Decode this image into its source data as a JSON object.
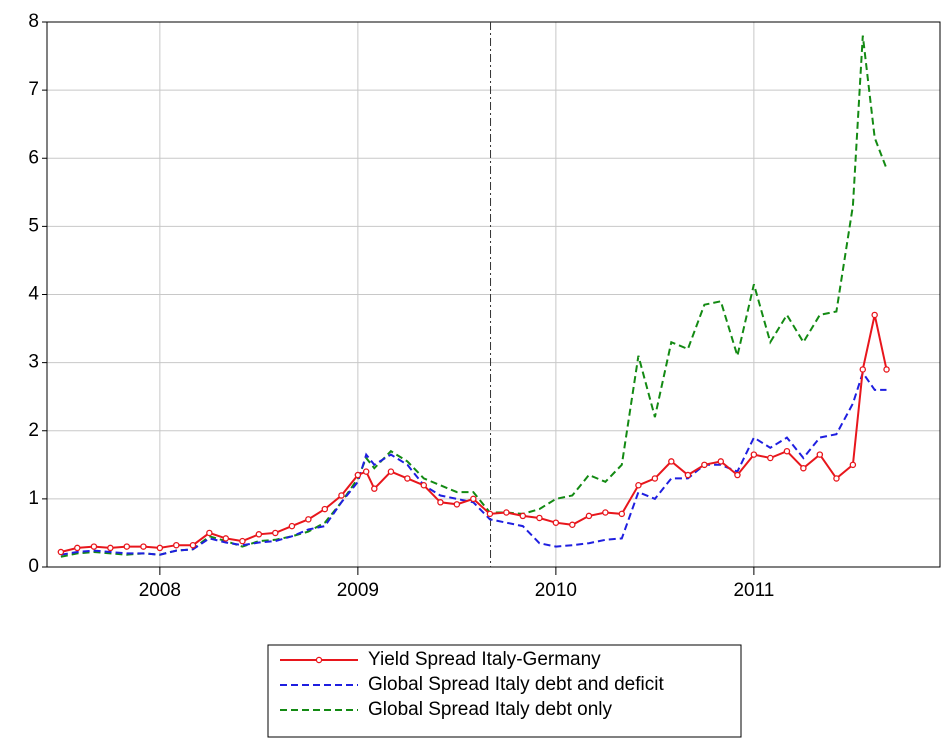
{
  "chart_data": {
    "type": "line",
    "x": [
      2007.5,
      2007.583,
      2007.667,
      2007.75,
      2007.833,
      2007.917,
      2008.0,
      2008.083,
      2008.167,
      2008.25,
      2008.333,
      2008.417,
      2008.5,
      2008.583,
      2008.667,
      2008.75,
      2008.833,
      2008.917,
      2009.0,
      2009.042,
      2009.083,
      2009.167,
      2009.25,
      2009.333,
      2009.417,
      2009.5,
      2009.583,
      2009.667,
      2009.75,
      2009.833,
      2009.917,
      2010.0,
      2010.083,
      2010.167,
      2010.25,
      2010.333,
      2010.417,
      2010.5,
      2010.583,
      2010.667,
      2010.75,
      2010.833,
      2010.917,
      2011.0,
      2011.083,
      2011.167,
      2011.25,
      2011.333,
      2011.417,
      2011.5,
      2011.55,
      2011.61,
      2011.67
    ],
    "series": [
      {
        "name": "Yield Spread Italy-Germany",
        "color": "#e8161c",
        "markers": true,
        "values": [
          0.22,
          0.28,
          0.3,
          0.28,
          0.3,
          0.3,
          0.28,
          0.32,
          0.32,
          0.5,
          0.42,
          0.38,
          0.48,
          0.5,
          0.6,
          0.7,
          0.85,
          1.05,
          1.35,
          1.4,
          1.15,
          1.4,
          1.3,
          1.2,
          0.95,
          0.92,
          1.0,
          0.78,
          0.8,
          0.75,
          0.72,
          0.65,
          0.62,
          0.75,
          0.8,
          0.78,
          1.2,
          1.3,
          1.55,
          1.35,
          1.5,
          1.55,
          1.35,
          1.65,
          1.6,
          1.7,
          1.45,
          1.65,
          1.3,
          1.5,
          2.9,
          3.7,
          2.9
        ]
      },
      {
        "name": "Global Spread Italy debt and deficit",
        "color": "#1f1fe0",
        "markers": false,
        "values": [
          0.18,
          0.22,
          0.24,
          0.22,
          0.2,
          0.2,
          0.18,
          0.24,
          0.26,
          0.42,
          0.36,
          0.32,
          0.36,
          0.38,
          0.45,
          0.55,
          0.6,
          0.95,
          1.25,
          1.65,
          1.5,
          1.65,
          1.5,
          1.2,
          1.05,
          1.0,
          0.95,
          0.7,
          0.65,
          0.6,
          0.35,
          0.3,
          0.32,
          0.35,
          0.4,
          0.42,
          1.1,
          1.0,
          1.3,
          1.3,
          1.5,
          1.5,
          1.4,
          1.9,
          1.75,
          1.9,
          1.6,
          1.9,
          1.95,
          2.4,
          2.85,
          2.6,
          2.6
        ]
      },
      {
        "name": "Global Spread Italy debt only",
        "color": "#138a13",
        "markers": false,
        "values": [
          0.15,
          0.2,
          0.22,
          0.2,
          0.18,
          0.2,
          0.18,
          0.24,
          0.26,
          0.45,
          0.38,
          0.3,
          0.38,
          0.4,
          0.45,
          0.52,
          0.65,
          0.95,
          1.3,
          1.6,
          1.45,
          1.7,
          1.55,
          1.3,
          1.2,
          1.1,
          1.1,
          0.8,
          0.8,
          0.78,
          0.85,
          1.0,
          1.05,
          1.35,
          1.25,
          1.5,
          3.1,
          2.2,
          3.3,
          3.2,
          3.85,
          3.9,
          3.1,
          4.15,
          3.3,
          3.7,
          3.3,
          3.7,
          3.75,
          5.3,
          7.8,
          6.3,
          5.85
        ]
      }
    ],
    "xlim": [
      2007.43,
      2011.94
    ],
    "xticks": [
      2008,
      2009,
      2010,
      2011
    ],
    "ylim": [
      0,
      8
    ],
    "yticks": [
      0,
      1,
      2,
      3,
      4,
      5,
      6,
      7,
      8
    ],
    "vline_x": 2009.67,
    "grid": true
  }
}
